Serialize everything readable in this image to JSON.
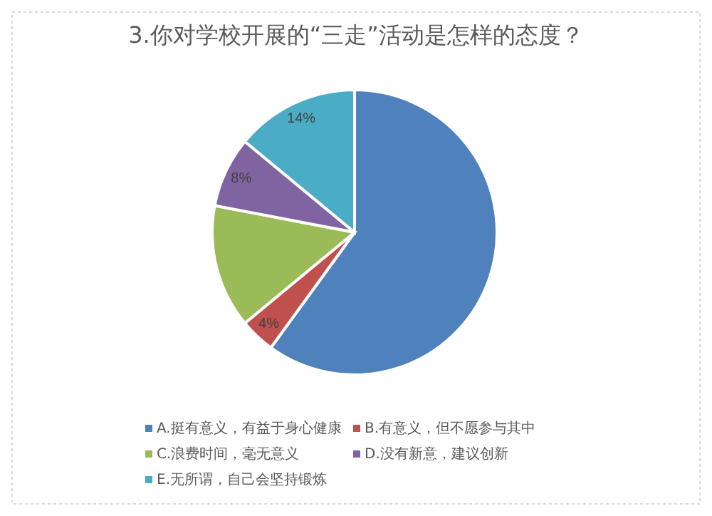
{
  "chart_data": {
    "type": "pie",
    "title": "3.你对学校开展的“三走”活动是怎样的态度？",
    "categories": [
      "A.挺有意义，有益于身心健康",
      "B.有意义，但不愿参与其中",
      "C.浪费时间，毫无意义",
      "D.没有新意，建议创新",
      "E.无所谓，自己会坚持锻炼"
    ],
    "values": [
      60,
      4,
      14,
      8,
      14
    ],
    "colors": [
      "#4f81bd",
      "#c0504d",
      "#9bbb59",
      "#8064a2",
      "#4bacc6"
    ],
    "value_labels": [
      null,
      "4%",
      null,
      "8%",
      "14%"
    ],
    "legend": "bottom"
  }
}
